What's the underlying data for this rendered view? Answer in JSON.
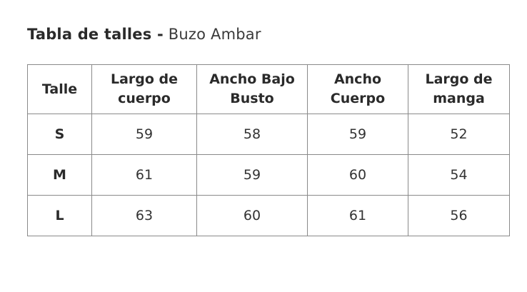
{
  "title": {
    "bold": "Tabla de talles -",
    "product": "Buzo Ambar"
  },
  "table": {
    "headers": [
      "Talle",
      "Largo de\ncuerpo",
      "Ancho Bajo\nBusto",
      "Ancho\nCuerpo",
      "Largo de\nmanga"
    ],
    "rows": [
      [
        "S",
        "59",
        "58",
        "59",
        "52"
      ],
      [
        "M",
        "61",
        "59",
        "60",
        "54"
      ],
      [
        "L",
        "63",
        "60",
        "61",
        "56"
      ]
    ]
  }
}
